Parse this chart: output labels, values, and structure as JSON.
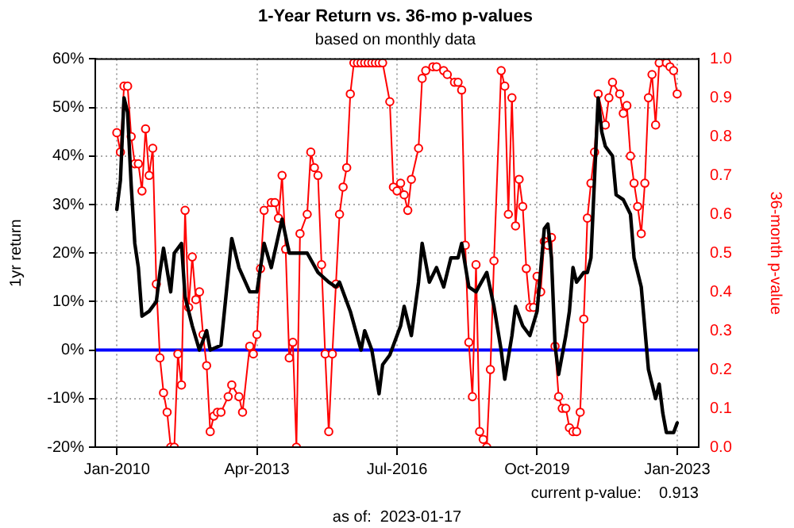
{
  "chart_data": {
    "type": "line",
    "title": "1-Year Return vs. 36-mo p-values",
    "subtitle": "based on monthly data",
    "ylabel": "1yr return",
    "y2label": "36-month p-value",
    "annotations": [
      "current p-value:    0.913",
      "as of:  2023-01-17"
    ],
    "xlim": [
      "2009-07",
      "2023-07"
    ],
    "xticks": [
      {
        "value": "2010-01",
        "label": "Jan-2010"
      },
      {
        "value": "2013-04",
        "label": "Apr-2013"
      },
      {
        "value": "2016-07",
        "label": "Jul-2016"
      },
      {
        "value": "2019-10",
        "label": "Oct-2019"
      },
      {
        "value": "2023-01",
        "label": "Jan-2023"
      }
    ],
    "ylim": [
      -20,
      60
    ],
    "yticks": [
      {
        "value": -20,
        "label": "-20%"
      },
      {
        "value": -10,
        "label": "-10%"
      },
      {
        "value": 0,
        "label": "0%"
      },
      {
        "value": 10,
        "label": "10%"
      },
      {
        "value": 20,
        "label": "20%"
      },
      {
        "value": 30,
        "label": "30%"
      },
      {
        "value": 40,
        "label": "40%"
      },
      {
        "value": 50,
        "label": "50%"
      },
      {
        "value": 60,
        "label": "60%"
      }
    ],
    "y2lim": [
      0,
      1
    ],
    "y2ticks": [
      {
        "value": 0,
        "label": "0.0"
      },
      {
        "value": 0.1,
        "label": "0.1"
      },
      {
        "value": 0.2,
        "label": "0.2"
      },
      {
        "value": 0.3,
        "label": "0.3"
      },
      {
        "value": 0.4,
        "label": "0.4"
      },
      {
        "value": 0.5,
        "label": "0.5"
      },
      {
        "value": 0.6,
        "label": "0.6"
      },
      {
        "value": 0.7,
        "label": "0.7"
      },
      {
        "value": 0.8,
        "label": "0.8"
      },
      {
        "value": 0.9,
        "label": "0.9"
      },
      {
        "value": 1,
        "label": "1.0"
      }
    ],
    "grid": true,
    "legend": false,
    "ref_lines": [
      {
        "axis": "y",
        "value": 0,
        "color": "#0000ff"
      }
    ],
    "series": [
      {
        "color": "#ff0000",
        "axis": "y2",
        "marker": "circle",
        "x": [
          "2010-01",
          "2010-02",
          "2010-03",
          "2010-04",
          "2010-05",
          "2010-06",
          "2010-07",
          "2010-08",
          "2010-09",
          "2010-10",
          "2010-11",
          "2010-12",
          "2011-01",
          "2011-02",
          "2011-03",
          "2011-04",
          "2011-05",
          "2011-06",
          "2011-07",
          "2011-08",
          "2011-09",
          "2011-10",
          "2011-11",
          "2011-12",
          "2012-01",
          "2012-02",
          "2012-03",
          "2012-04",
          "2012-05",
          "2012-06",
          "2012-08",
          "2012-09",
          "2012-11",
          "2012-12",
          "2013-02",
          "2013-03",
          "2013-04",
          "2013-05",
          "2013-06",
          "2013-08",
          "2013-09",
          "2013-10",
          "2013-11",
          "2013-12",
          "2014-01",
          "2014-02",
          "2014-03",
          "2014-04",
          "2014-06",
          "2014-07",
          "2014-08",
          "2014-09",
          "2014-10",
          "2014-11",
          "2014-12",
          "2015-01",
          "2015-02",
          "2015-03",
          "2015-04",
          "2015-05",
          "2015-06",
          "2015-07",
          "2015-08",
          "2015-09",
          "2015-10",
          "2015-11",
          "2015-12",
          "2016-01",
          "2016-02",
          "2016-03",
          "2016-05",
          "2016-06",
          "2016-07",
          "2016-08",
          "2016-09",
          "2016-10",
          "2016-11",
          "2017-01",
          "2017-02",
          "2017-03",
          "2017-05",
          "2017-06",
          "2017-08",
          "2017-09",
          "2017-11",
          "2017-12",
          "2018-01",
          "2018-02",
          "2018-03",
          "2018-04",
          "2018-05",
          "2018-06",
          "2018-07",
          "2018-08",
          "2018-09",
          "2018-10",
          "2018-12",
          "2019-01",
          "2019-02",
          "2019-03",
          "2019-04",
          "2019-05",
          "2019-06",
          "2019-07",
          "2019-08",
          "2019-09",
          "2019-10",
          "2019-11",
          "2019-12",
          "2020-01",
          "2020-02",
          "2020-03",
          "2020-04",
          "2020-05",
          "2020-06",
          "2020-07",
          "2020-08",
          "2020-09",
          "2020-10",
          "2020-11",
          "2020-12",
          "2021-01",
          "2021-02",
          "2021-03",
          "2021-05",
          "2021-06",
          "2021-07",
          "2021-09",
          "2021-10",
          "2021-11",
          "2021-12",
          "2022-01",
          "2022-02",
          "2022-03",
          "2022-04",
          "2022-05",
          "2022-06",
          "2022-07",
          "2022-08",
          "2022-10",
          "2022-11",
          "2022-12",
          "2023-01"
        ],
        "values": [
          0.81,
          0.76,
          0.93,
          0.93,
          0.8,
          0.73,
          0.73,
          0.66,
          0.82,
          0.7,
          0.77,
          0.42,
          0.23,
          0.14,
          0.09,
          0,
          0,
          0.24,
          0.16,
          0.61,
          0.36,
          0.49,
          0.38,
          0.4,
          0.29,
          0.21,
          0.04,
          0.08,
          0.09,
          0.09,
          0.13,
          0.16,
          0.13,
          0.09,
          0.26,
          0.24,
          0.29,
          0.46,
          0.61,
          0.63,
          0.63,
          0.59,
          0.7,
          0.51,
          0.23,
          0.27,
          0,
          0.55,
          0.6,
          0.76,
          0.72,
          0.7,
          0.47,
          0.24,
          0.04,
          0.24,
          0.42,
          0.6,
          0.67,
          0.72,
          0.91,
          0.99,
          0.99,
          0.99,
          0.99,
          0.99,
          0.99,
          0.99,
          0.99,
          0.99,
          0.89,
          0.67,
          0.66,
          0.68,
          0.65,
          0.61,
          0.69,
          0.77,
          0.95,
          0.97,
          0.98,
          0.98,
          0.97,
          0.96,
          0.94,
          0.94,
          0.92,
          0.52,
          0.27,
          0.13,
          0.47,
          0.04,
          0.02,
          0,
          0.2,
          0.48,
          0.97,
          0.93,
          0.6,
          0.9,
          0.57,
          0.69,
          0.62,
          0.46,
          0.36,
          0.36,
          0.44,
          0.4,
          0.53,
          0.52,
          0.54,
          0.26,
          0.13,
          0.1,
          0.1,
          0.05,
          0.04,
          0.04,
          0.09,
          0.33,
          0.59,
          0.68,
          0.76,
          0.91,
          0.83,
          0.9,
          0.94,
          0.91,
          0.86,
          0.88,
          0.75,
          0.68,
          0.62,
          0.55,
          0.68,
          0.9,
          0.96,
          0.83,
          0.99,
          0.99,
          0.98,
          0.97,
          0.91
        ]
      },
      {
        "color": "#000000",
        "marker": "none",
        "x": [
          "2010-01",
          "2010-02",
          "2010-03",
          "2010-04",
          "2010-05",
          "2010-06",
          "2010-07",
          "2010-08",
          "2010-10",
          "2010-12",
          "2011-01",
          "2011-02",
          "2011-04",
          "2011-05",
          "2011-07",
          "2011-08",
          "2011-10",
          "2011-12",
          "2012-02",
          "2012-03",
          "2012-06",
          "2012-09",
          "2012-11",
          "2013-02",
          "2013-04",
          "2013-06",
          "2013-08",
          "2013-11",
          "2014-01",
          "2014-04",
          "2014-06",
          "2014-09",
          "2014-12",
          "2015-02",
          "2015-03",
          "2015-06",
          "2015-09",
          "2015-10",
          "2015-12",
          "2016-02",
          "2016-03",
          "2016-05",
          "2016-08",
          "2016-09",
          "2016-11",
          "2017-01",
          "2017-02",
          "2017-04",
          "2017-06",
          "2017-08",
          "2017-10",
          "2017-12",
          "2018-01",
          "2018-03",
          "2018-05",
          "2018-08",
          "2018-10",
          "2018-12",
          "2019-01",
          "2019-03",
          "2019-04",
          "2019-06",
          "2019-08",
          "2019-10",
          "2019-12",
          "2020-01",
          "2020-02",
          "2020-03",
          "2020-04",
          "2020-06",
          "2020-07",
          "2020-08",
          "2020-09",
          "2020-11",
          "2020-12",
          "2021-01",
          "2021-03",
          "2021-04",
          "2021-05",
          "2021-07",
          "2021-08",
          "2021-10",
          "2021-12",
          "2022-01",
          "2022-03",
          "2022-05",
          "2022-07",
          "2022-08",
          "2022-09",
          "2022-10",
          "2022-12",
          "2023-01"
        ],
        "values": [
          29,
          35,
          52,
          49,
          34,
          22,
          17,
          7,
          8,
          10,
          16,
          21,
          12,
          20,
          22,
          11,
          5,
          0,
          4,
          0,
          1,
          23,
          17,
          12,
          12,
          22,
          17,
          27,
          20,
          20,
          20,
          16,
          14,
          13,
          14,
          8,
          0,
          4,
          0,
          -9,
          -3,
          -1,
          5,
          9,
          3,
          14,
          22,
          14,
          17,
          13,
          19,
          19,
          22,
          13,
          12,
          16,
          9,
          0,
          -6,
          3,
          9,
          5,
          3,
          8,
          25,
          26,
          19,
          1,
          -5,
          3,
          8,
          17,
          14,
          16,
          16,
          19,
          52,
          45,
          42,
          40,
          32,
          31,
          28,
          19,
          13,
          -4,
          -10,
          -7,
          -13,
          -17,
          -17,
          -15
        ]
      }
    ]
  }
}
